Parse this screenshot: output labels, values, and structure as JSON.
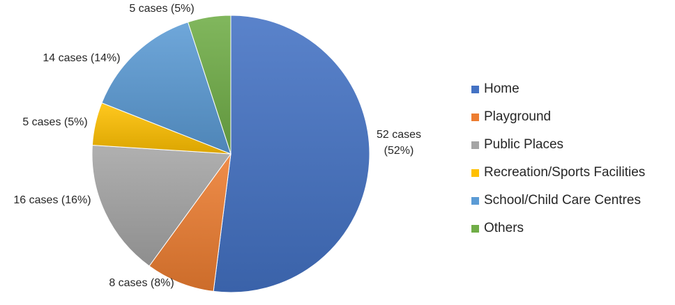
{
  "chart_data": {
    "type": "pie",
    "title": "",
    "unit": "cases",
    "start_angle_deg": 0,
    "direction": "clockwise",
    "legend_position": "right",
    "slices": [
      {
        "label": "Home",
        "value": 52,
        "percent": 52,
        "data_label": [
          "52 cases",
          "(52%)"
        ],
        "color": "#4472C4"
      },
      {
        "label": "Playground",
        "value": 8,
        "percent": 8,
        "data_label": [
          "8 cases (8%)"
        ],
        "color": "#ED7D31"
      },
      {
        "label": "Public Places",
        "value": 16,
        "percent": 16,
        "data_label": [
          "16 cases (16%)"
        ],
        "color": "#A5A5A5"
      },
      {
        "label": "Recreation/Sports Facilities",
        "value": 5,
        "percent": 5,
        "data_label": [
          "5 cases (5%)"
        ],
        "color": "#FFC000"
      },
      {
        "label": "School/Child Care Centres",
        "value": 14,
        "percent": 14,
        "data_label": [
          "14 cases (14%)"
        ],
        "color": "#5B9BD5"
      },
      {
        "label": "Others",
        "value": 5,
        "percent": 5,
        "data_label": [
          "5 cases (5%)"
        ],
        "color": "#70AD47"
      }
    ]
  }
}
